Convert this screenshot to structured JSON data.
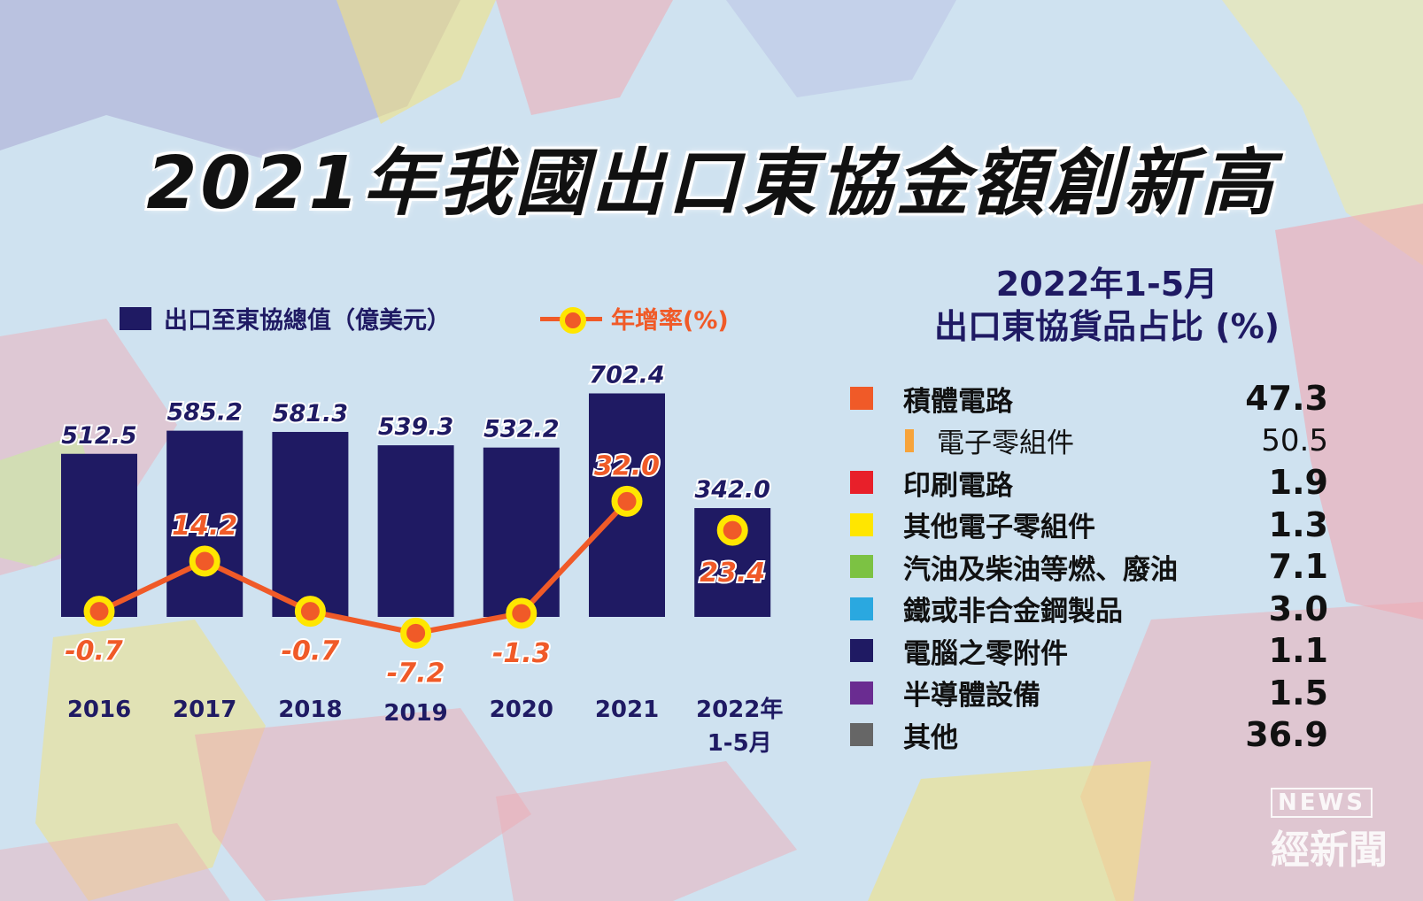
{
  "title": "2021年我國出口東協金額創新高",
  "legend": {
    "bar_label": "出口至東協總值（億美元）",
    "line_label": "年增率(%)"
  },
  "colors": {
    "bar": "#1f1a63",
    "line": "#f05a28",
    "marker_ring": "#ffe600"
  },
  "chart_data": {
    "type": "bar",
    "categories": [
      "2016",
      "2017",
      "2018",
      "2019",
      "2020",
      "2021",
      "2022年 1-5月"
    ],
    "series": [
      {
        "name": "出口至東協總值（億美元）",
        "type": "bar",
        "values": [
          512.5,
          585.2,
          581.3,
          539.3,
          532.2,
          702.4,
          342.0
        ],
        "labels": [
          "512.5",
          "585.2",
          "581.3",
          "539.3",
          "532.2",
          "702.4",
          "342.0"
        ]
      },
      {
        "name": "年增率(%)",
        "type": "line",
        "values": [
          -0.7,
          14.2,
          -0.7,
          -7.2,
          -1.3,
          32.0,
          23.4
        ],
        "labels": [
          "-0.7",
          "14.2",
          "-0.7",
          "-7.2",
          "-1.3",
          "32.0",
          "23.4"
        ]
      }
    ],
    "tick_labels": [
      [
        "2016"
      ],
      [
        "2017"
      ],
      [
        "2018"
      ],
      [
        "2019"
      ],
      [
        "2020"
      ],
      [
        "2021"
      ],
      [
        "2022年",
        "1-5月"
      ]
    ]
  },
  "share_panel": {
    "title_line1": "2022年1-5月",
    "title_line2": "出口東協貨品占比 (%)",
    "items": [
      {
        "label": "積體電路",
        "value": "47.3",
        "color": "#f05a28"
      },
      {
        "label": "電子零組件",
        "value": "50.5",
        "color": "#f7a43b",
        "sub": true
      },
      {
        "label": "印刷電路",
        "value": "1.9",
        "color": "#e8202a"
      },
      {
        "label": "其他電子零組件",
        "value": "1.3",
        "color": "#ffe600"
      },
      {
        "label": "汽油及柴油等燃、廢油",
        "value": "7.1",
        "color": "#7cc243"
      },
      {
        "label": "鐵或非合金鋼製品",
        "value": "3.0",
        "color": "#2aa8e0"
      },
      {
        "label": "電腦之零附件",
        "value": "1.1",
        "color": "#1f1a63"
      },
      {
        "label": "半導體設備",
        "value": "1.5",
        "color": "#6a2c91"
      },
      {
        "label": "其他",
        "value": "36.9",
        "color": "#666666"
      }
    ]
  },
  "logo": {
    "news": "NEWS",
    "name": "經新聞"
  }
}
